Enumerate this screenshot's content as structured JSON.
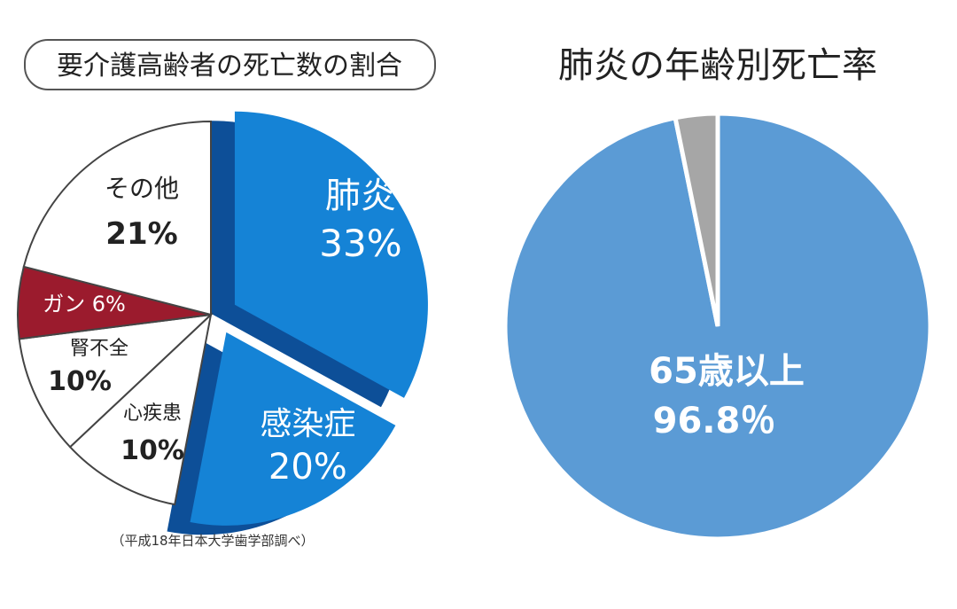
{
  "chart_data": [
    {
      "type": "pie",
      "title": "要介護高齢者の死亡数の割合",
      "source": "（平成18年日本大学歯学部調べ）",
      "slices": [
        {
          "name": "肺炎",
          "value": 33,
          "value_label": "33%",
          "color": "#1583d6",
          "side_color": "#0d4f98",
          "exploded": true
        },
        {
          "name": "感染症",
          "value": 20,
          "value_label": "20%",
          "color": "#1583d6",
          "side_color": "#0d4f98",
          "exploded": true
        },
        {
          "name": "心疾患",
          "value": 10,
          "value_label": "10%",
          "color": "#ffffff"
        },
        {
          "name": "腎不全",
          "value": 10,
          "value_label": "10%",
          "color": "#ffffff"
        },
        {
          "name": "ガン",
          "value": 6,
          "value_label": "6%",
          "color": "#9b1b2d"
        },
        {
          "name": "その他",
          "value": 21,
          "value_label": "21%",
          "color": "#ffffff"
        }
      ]
    },
    {
      "type": "pie",
      "title": "肺炎の年齢別死亡率",
      "slices": [
        {
          "name": "65歳以上",
          "value": 96.8,
          "value_label": "96.8％",
          "color": "#5b9bd5"
        },
        {
          "name": "",
          "value": 3.2,
          "value_label": "",
          "color": "#a6a6a6"
        }
      ]
    }
  ]
}
